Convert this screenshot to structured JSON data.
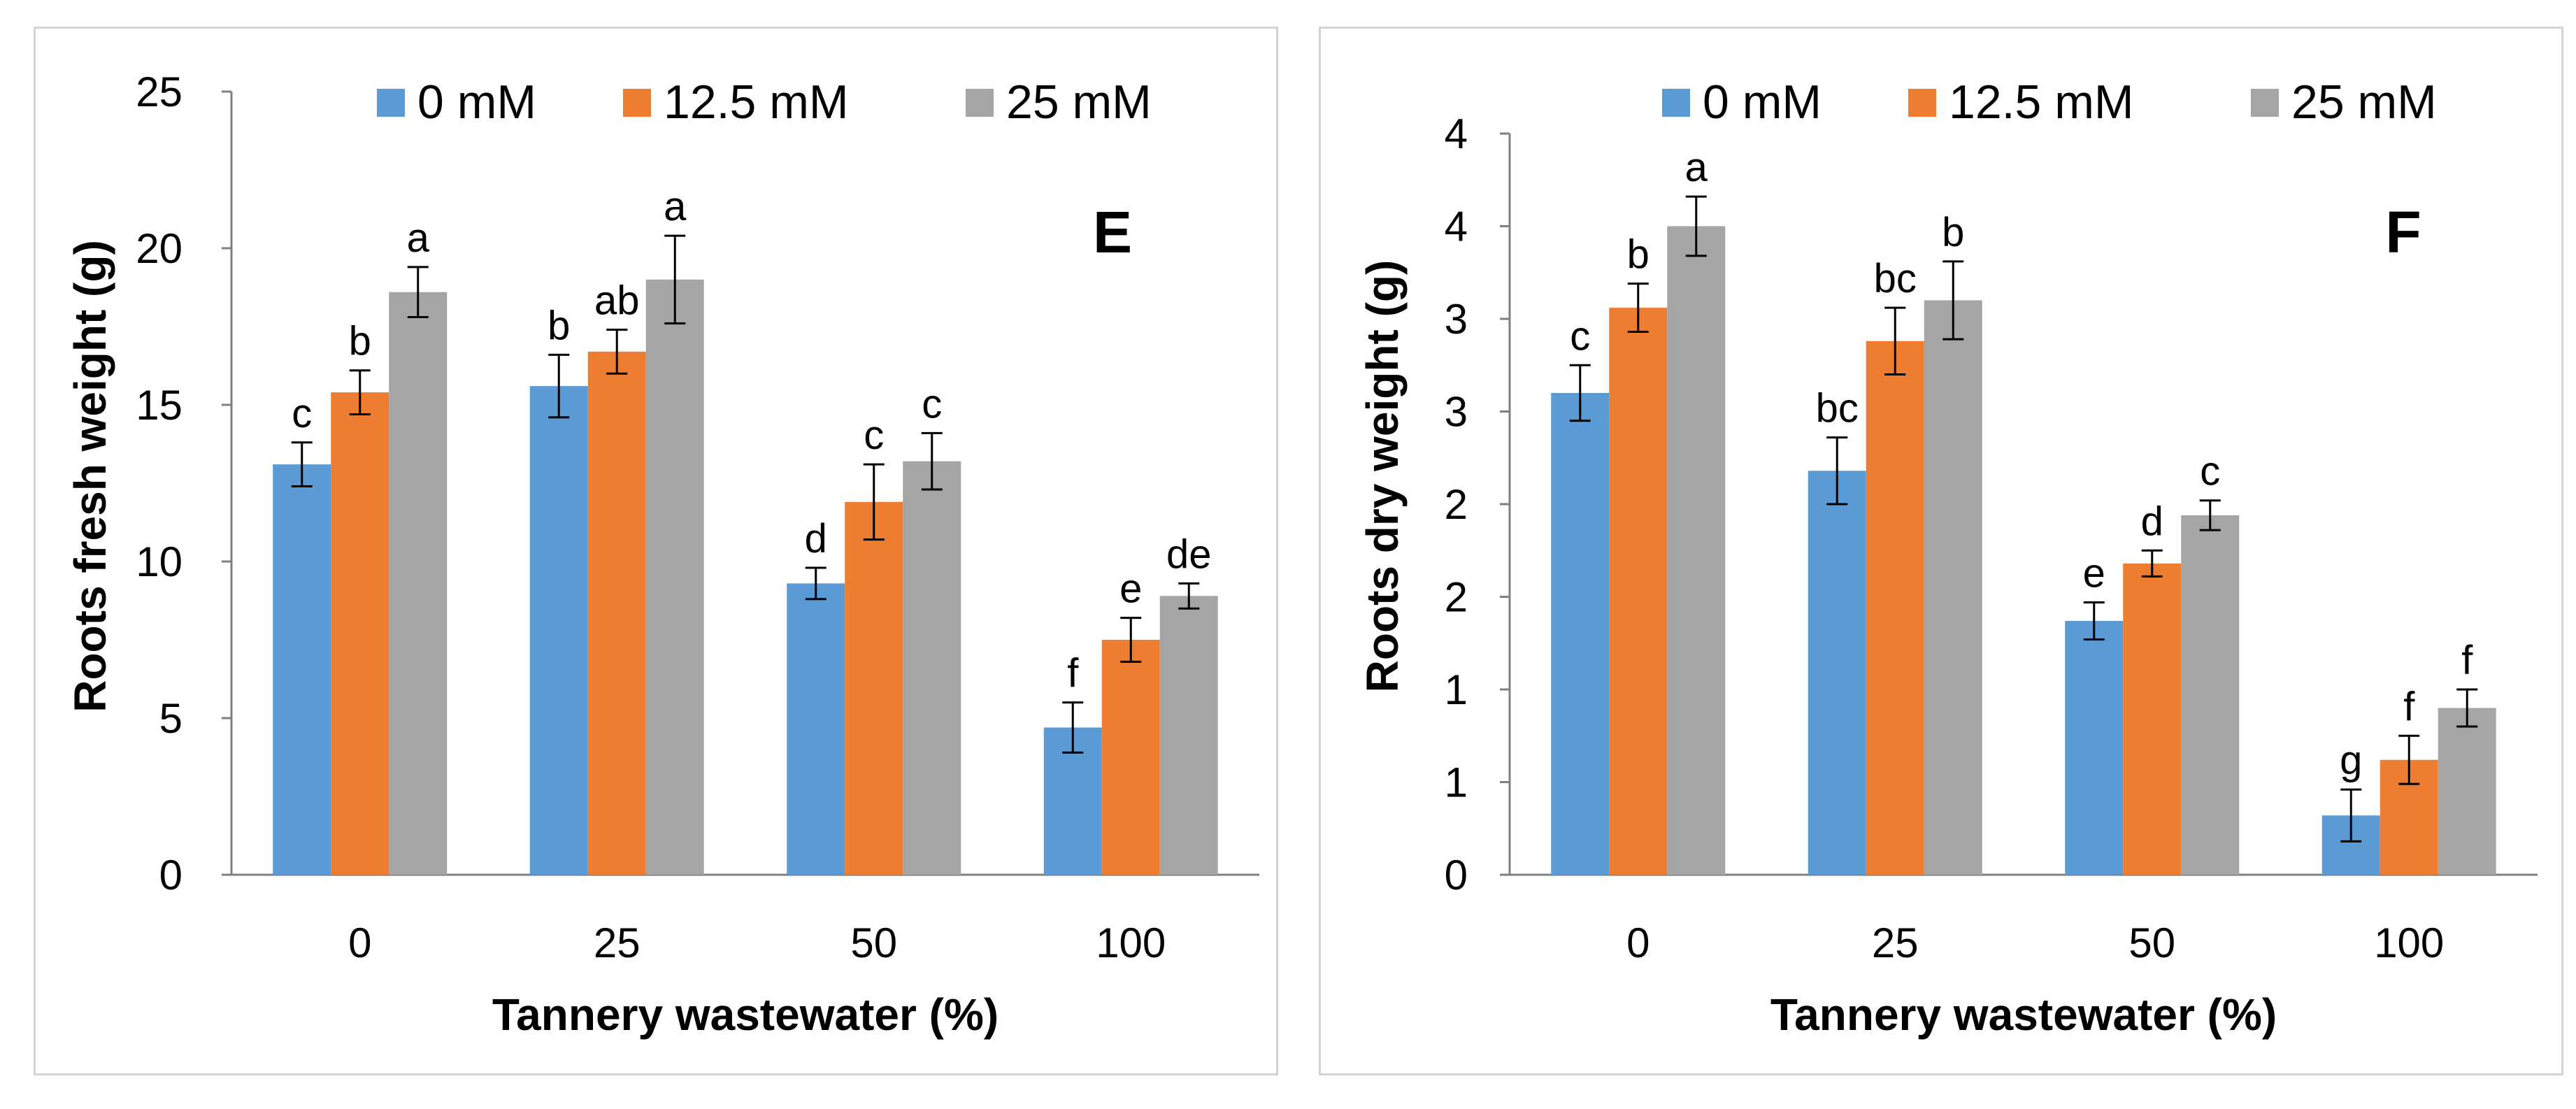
{
  "chart_data": [
    {
      "type": "bar",
      "panel_letter": "E",
      "title": "",
      "xlabel": "Tannery wastewater (%)",
      "ylabel": "Roots fresh weight (g)",
      "categories": [
        "0",
        "25",
        "50",
        "100"
      ],
      "yticks": [
        "0",
        "5",
        "10",
        "15",
        "20",
        "25"
      ],
      "ylim": [
        0,
        25
      ],
      "legend_position": "top",
      "series": [
        {
          "name": "0 mM",
          "color": "#5b9bd5",
          "values": [
            13.1,
            15.6,
            9.3,
            4.7
          ],
          "errors": [
            0.7,
            1.0,
            0.5,
            0.8
          ],
          "labels": [
            "c",
            "b",
            "d",
            "f"
          ]
        },
        {
          "name": "12.5 mM",
          "color": "#ed7d31",
          "values": [
            15.4,
            16.7,
            11.9,
            7.5
          ],
          "errors": [
            0.7,
            0.7,
            1.2,
            0.7
          ],
          "labels": [
            "b",
            "ab",
            "c",
            "e"
          ]
        },
        {
          "name": "25 mM",
          "color": "#a5a5a5",
          "values": [
            18.6,
            19.0,
            13.2,
            8.9
          ],
          "errors": [
            0.8,
            1.4,
            0.9,
            0.4
          ],
          "labels": [
            "a",
            "a",
            "c",
            "de"
          ]
        }
      ]
    },
    {
      "type": "bar",
      "panel_letter": "F",
      "title": "",
      "xlabel": "Tannery wastewater (%)",
      "ylabel": "Roots dry weight (g)",
      "categories": [
        "0",
        "25",
        "50",
        "100"
      ],
      "yticks": [
        "0",
        "1",
        "1",
        "2",
        "2",
        "3",
        "3",
        "4",
        "4"
      ],
      "ylim": [
        0,
        4
      ],
      "legend_position": "top",
      "series": [
        {
          "name": "0 mM",
          "color": "#5b9bd5",
          "values": [
            2.6,
            2.18,
            1.37,
            0.32
          ],
          "errors": [
            0.15,
            0.18,
            0.1,
            0.14
          ],
          "labels": [
            "c",
            "bc",
            "e",
            "g"
          ]
        },
        {
          "name": "12.5 mM",
          "color": "#ed7d31",
          "values": [
            3.06,
            2.88,
            1.68,
            0.62
          ],
          "errors": [
            0.13,
            0.18,
            0.07,
            0.13
          ],
          "labels": [
            "b",
            "bc",
            "d",
            "f"
          ]
        },
        {
          "name": "25 mM",
          "color": "#a5a5a5",
          "values": [
            3.5,
            3.1,
            1.94,
            0.9
          ],
          "errors": [
            0.16,
            0.21,
            0.08,
            0.1
          ],
          "labels": [
            "a",
            "b",
            "c",
            "f"
          ]
        }
      ]
    }
  ]
}
